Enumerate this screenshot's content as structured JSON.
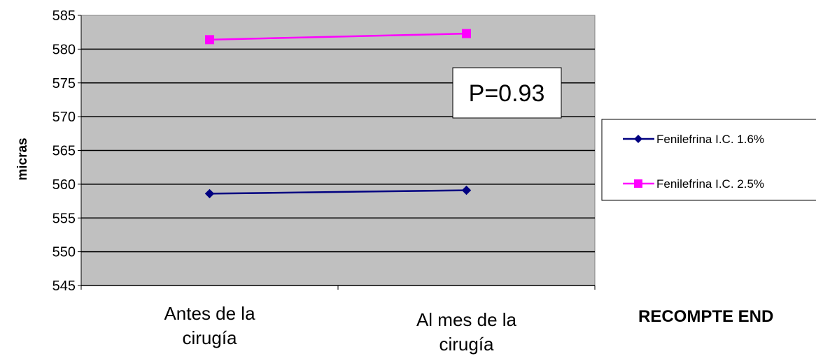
{
  "chart_data": {
    "type": "line",
    "ylabel": "micras",
    "ylim": [
      545,
      585
    ],
    "yticks": [
      545,
      550,
      555,
      560,
      565,
      570,
      575,
      580,
      585
    ],
    "categories": [
      [
        "Antes de la",
        "cirugía"
      ],
      [
        "Al mes de la",
        "cirugía"
      ]
    ],
    "series": [
      {
        "name": "Fenilefrina I.C. 1.6%",
        "values": [
          558.6,
          559.1
        ],
        "color": "#000080",
        "marker": "diamond"
      },
      {
        "name": "Fenilefrina I.C. 2.5%",
        "values": [
          581.4,
          582.3
        ],
        "color": "#FF00FF",
        "marker": "square"
      }
    ],
    "annotation": "P=0.93",
    "plot_background": "#C0C0C0",
    "grid": true,
    "legend_position": "right"
  },
  "footer_text": "RECOMPTE END"
}
